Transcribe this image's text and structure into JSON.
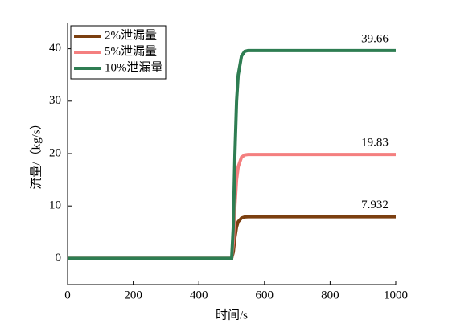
{
  "chart_data": {
    "type": "line",
    "x_label": "时间/s",
    "y_label": "流量/（kg/s）",
    "x": [
      0,
      100,
      200,
      300,
      400,
      500,
      505,
      510,
      515,
      520,
      530,
      540,
      550,
      600,
      700,
      800,
      900,
      1000
    ],
    "series": [
      {
        "name": "2%泄漏量",
        "color": "#7b3f10",
        "values": [
          0,
          0,
          0,
          0,
          0,
          0,
          1.2,
          4.0,
          6.0,
          7.0,
          7.7,
          7.9,
          7.932,
          7.932,
          7.932,
          7.932,
          7.932,
          7.932
        ],
        "end_value": 7.932
      },
      {
        "name": "5%泄漏量",
        "color": "#f47f7f",
        "values": [
          0,
          0,
          0,
          0,
          0,
          0,
          3.0,
          10.0,
          15.0,
          17.5,
          19.3,
          19.75,
          19.83,
          19.83,
          19.83,
          19.83,
          19.83,
          19.83
        ],
        "end_value": 19.83
      },
      {
        "name": "10%泄漏量",
        "color": "#2e7d52",
        "values": [
          0,
          0,
          0,
          0,
          0,
          0,
          6.0,
          20.0,
          30.0,
          35.0,
          38.6,
          39.5,
          39.66,
          39.66,
          39.66,
          39.66,
          39.66,
          39.66
        ],
        "end_value": 39.66
      }
    ],
    "xlim": [
      0,
      1000
    ],
    "xticks": [
      0,
      200,
      400,
      600,
      800,
      1000
    ],
    "ylim": [
      -5,
      45
    ],
    "yticks": [
      0,
      10,
      20,
      30,
      40
    ],
    "legend": "top-left"
  }
}
